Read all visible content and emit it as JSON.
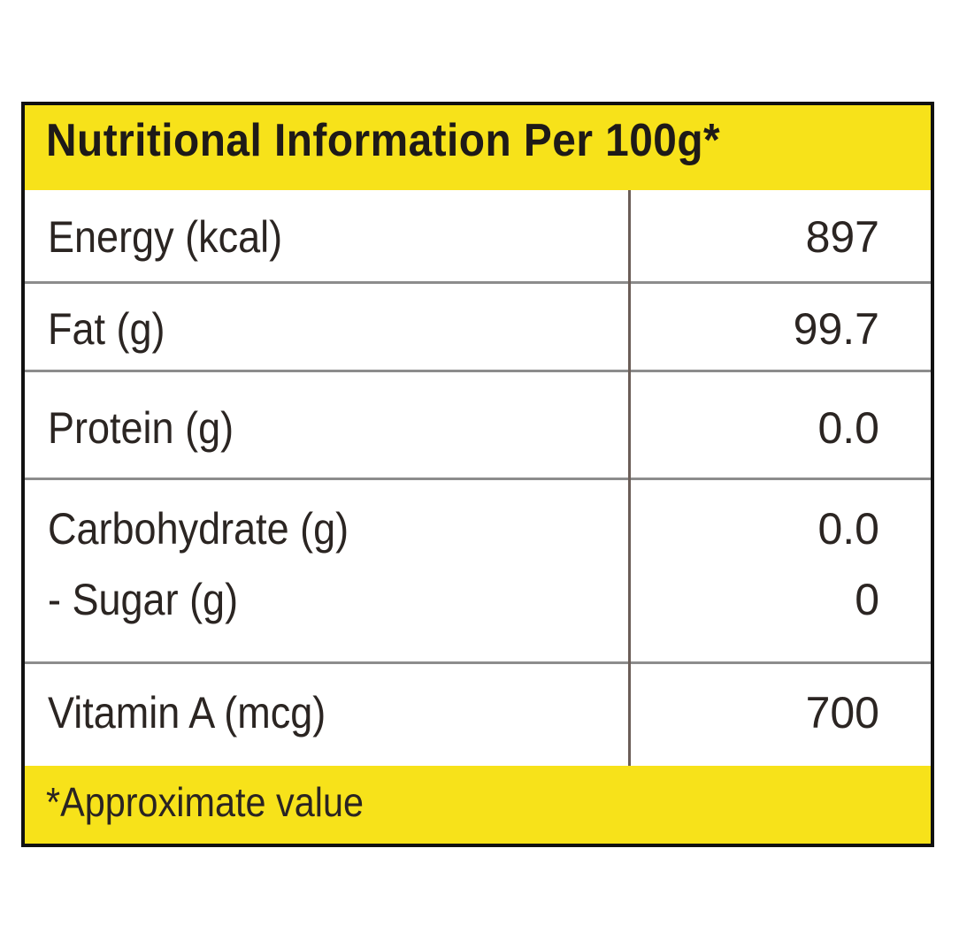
{
  "header": {
    "title": "Nutritional Information Per 100g*"
  },
  "rows": [
    {
      "label": "Energy (kcal)",
      "value": "897"
    },
    {
      "label": "Fat (g)",
      "value": "99.7"
    },
    {
      "label": "Protein (g)",
      "value": "0.0"
    },
    {
      "label": "Carbohydrate (g)",
      "value": "0.0",
      "sub_label": "- Sugar (g)",
      "sub_value": "0"
    },
    {
      "label": "Vitamin A (mcg)",
      "value": "700"
    }
  ],
  "footer": {
    "note": "*Approximate value"
  },
  "colors": {
    "header_bg": "#f7e21a",
    "footer_bg": "#f7e21a",
    "border": "#111111",
    "text": "#2a2422"
  }
}
